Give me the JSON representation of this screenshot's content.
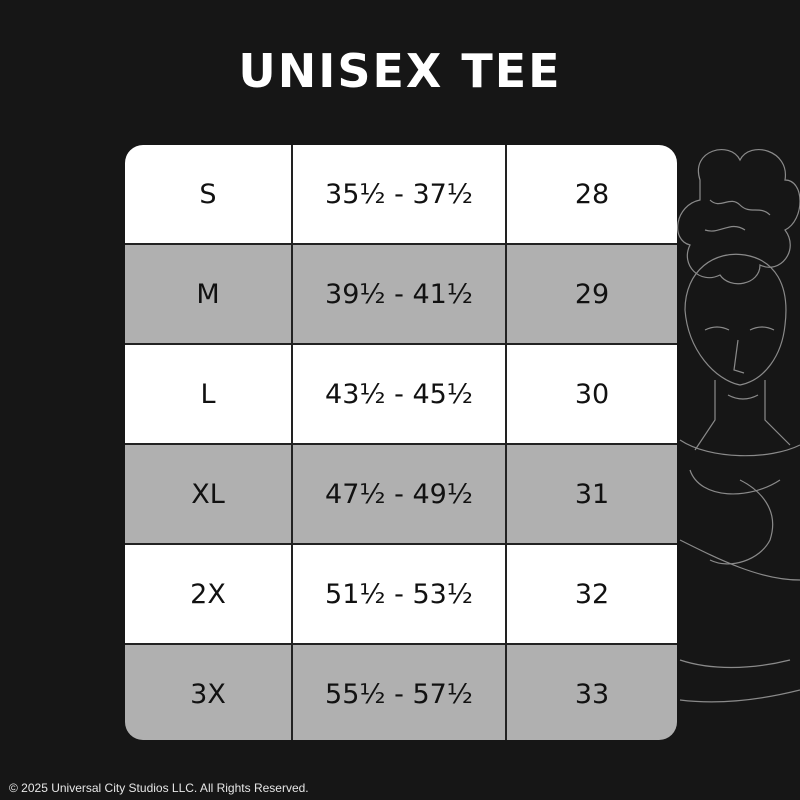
{
  "title": "UNISEX TEE",
  "rows": [
    {
      "size": "S",
      "chest": "35½ - 37½",
      "length": "28"
    },
    {
      "size": "M",
      "chest": "39½ - 41½",
      "length": "29"
    },
    {
      "size": "L",
      "chest": "43½ - 45½",
      "length": "30"
    },
    {
      "size": "XL",
      "chest": "47½ - 49½",
      "length": "31"
    },
    {
      "size": "2X",
      "chest": "51½ - 53½",
      "length": "32"
    },
    {
      "size": "3X",
      "chest": "55½ - 57½",
      "length": "33"
    }
  ],
  "colors": {
    "background": "#161616",
    "row_white": "#ffffff",
    "row_gray": "#b0b0b0"
  },
  "footer": "© 2025 Universal City Studios LLC. All Rights Reserved."
}
